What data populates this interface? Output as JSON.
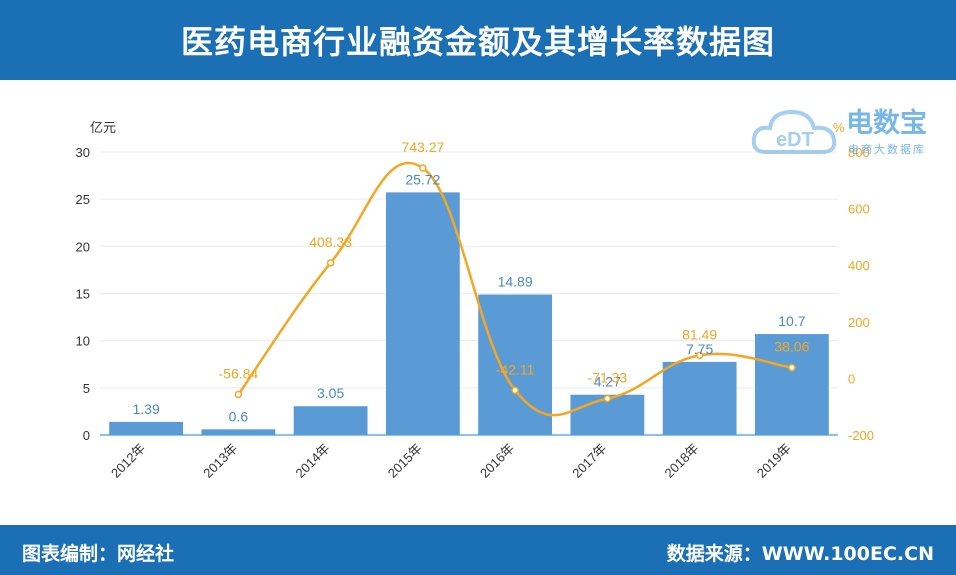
{
  "header": {
    "title": "医药电商行业融资金额及其增长率数据图"
  },
  "footer": {
    "left": "图表编制：网经社",
    "right": "数据来源：WWW.100EC.CN"
  },
  "watermark": {
    "name": "电数宝",
    "logo_text": "eDT",
    "sub": "电商大数据库"
  },
  "colors": {
    "header_bg": "#1a6fb5",
    "bar": "#5b9bd5",
    "line": "#f5a623",
    "bar_label": "#4a8ac4"
  },
  "chart_data": {
    "type": "bar",
    "categories": [
      "2012年",
      "2013年",
      "2014年",
      "2015年",
      "2016年",
      "2017年",
      "2018年",
      "2019年"
    ],
    "series": [
      {
        "type": "bar",
        "axis": "left",
        "values": [
          1.39,
          0.6,
          3.05,
          25.72,
          14.89,
          4.27,
          7.75,
          10.7
        ],
        "labels": [
          "1.39",
          "0.6",
          "3.05",
          "25.72",
          "14.89",
          "4.27",
          "7.75",
          "10.7"
        ]
      },
      {
        "type": "line",
        "axis": "right",
        "values": [
          null,
          -56.84,
          408.33,
          743.27,
          -42.11,
          -71.33,
          81.49,
          38.06
        ],
        "labels": [
          "",
          "-56.84",
          "408.33",
          "743.27",
          "-42.11",
          "-71.33",
          "81.49",
          "38.06"
        ]
      }
    ],
    "y_left": {
      "unit": "亿元",
      "ylim": [
        0,
        30
      ],
      "ticks": [
        "0",
        "5",
        "10",
        "15",
        "20",
        "25",
        "30"
      ]
    },
    "y_right": {
      "unit": "%",
      "ylim": [
        -200,
        800
      ],
      "ticks": [
        "-200",
        "0",
        "200",
        "400",
        "600",
        "800"
      ]
    },
    "grid": true,
    "legend": "none"
  }
}
